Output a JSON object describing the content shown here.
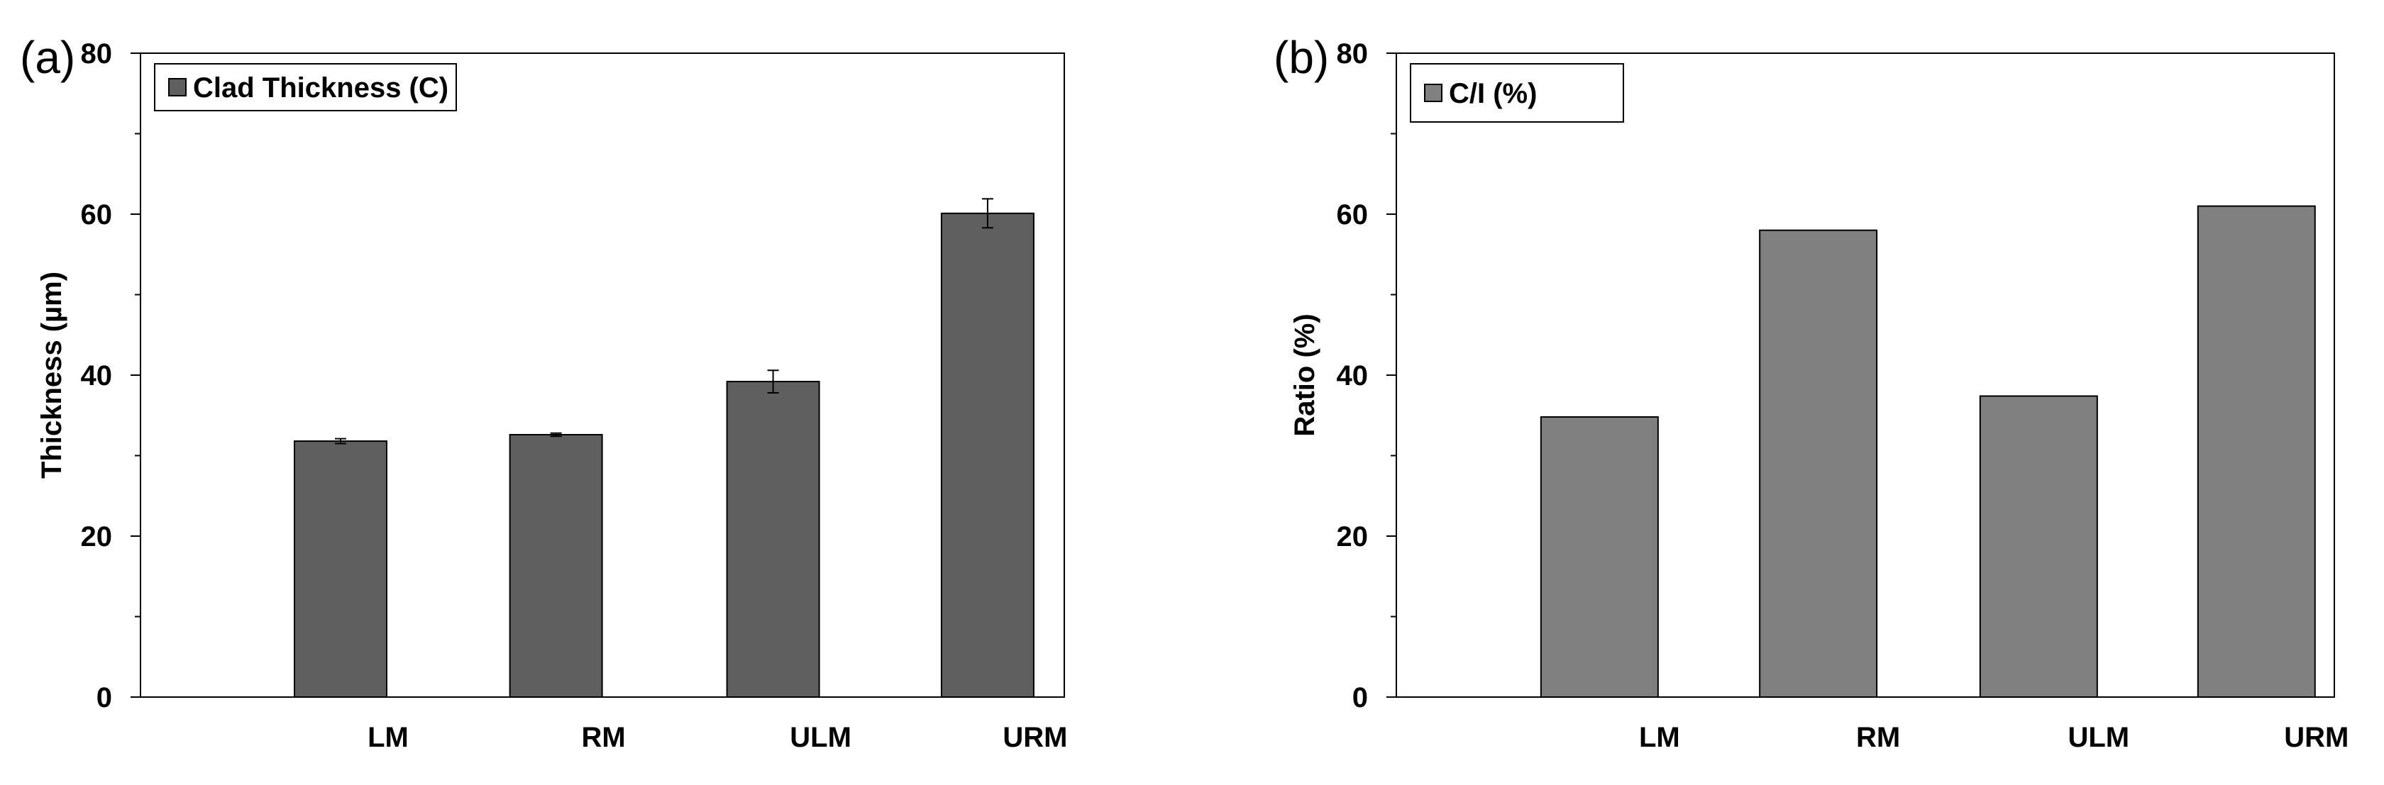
{
  "chart_data": [
    {
      "panel_label": "(a)",
      "type": "bar",
      "categories": [
        "LM",
        "RM",
        "ULM",
        "URM"
      ],
      "series": [
        {
          "name": "Clad Thickness (C)",
          "values": [
            31.8,
            32.6,
            39.2,
            60.1
          ],
          "errors": [
            0.3,
            0.2,
            1.4,
            1.8
          ],
          "color": "#5f5f5f"
        }
      ],
      "title": "",
      "xlabel": "",
      "ylabel": "Thickness (µm)",
      "ylim": [
        0,
        80
      ],
      "yticks": [
        0,
        20,
        40,
        60,
        80
      ],
      "legend_position": "top-left",
      "grid": false
    },
    {
      "panel_label": "(b)",
      "type": "bar",
      "categories": [
        "LM",
        "RM",
        "ULM",
        "URM"
      ],
      "series": [
        {
          "name": "C/I (%)",
          "values": [
            34.8,
            58.0,
            37.4,
            61.0
          ],
          "color": "#808080"
        }
      ],
      "title": "",
      "xlabel": "",
      "ylabel": "Ratio (%)",
      "ylim": [
        0,
        80
      ],
      "yticks": [
        0,
        20,
        40,
        60,
        80
      ],
      "legend_position": "top-left",
      "grid": false
    }
  ]
}
